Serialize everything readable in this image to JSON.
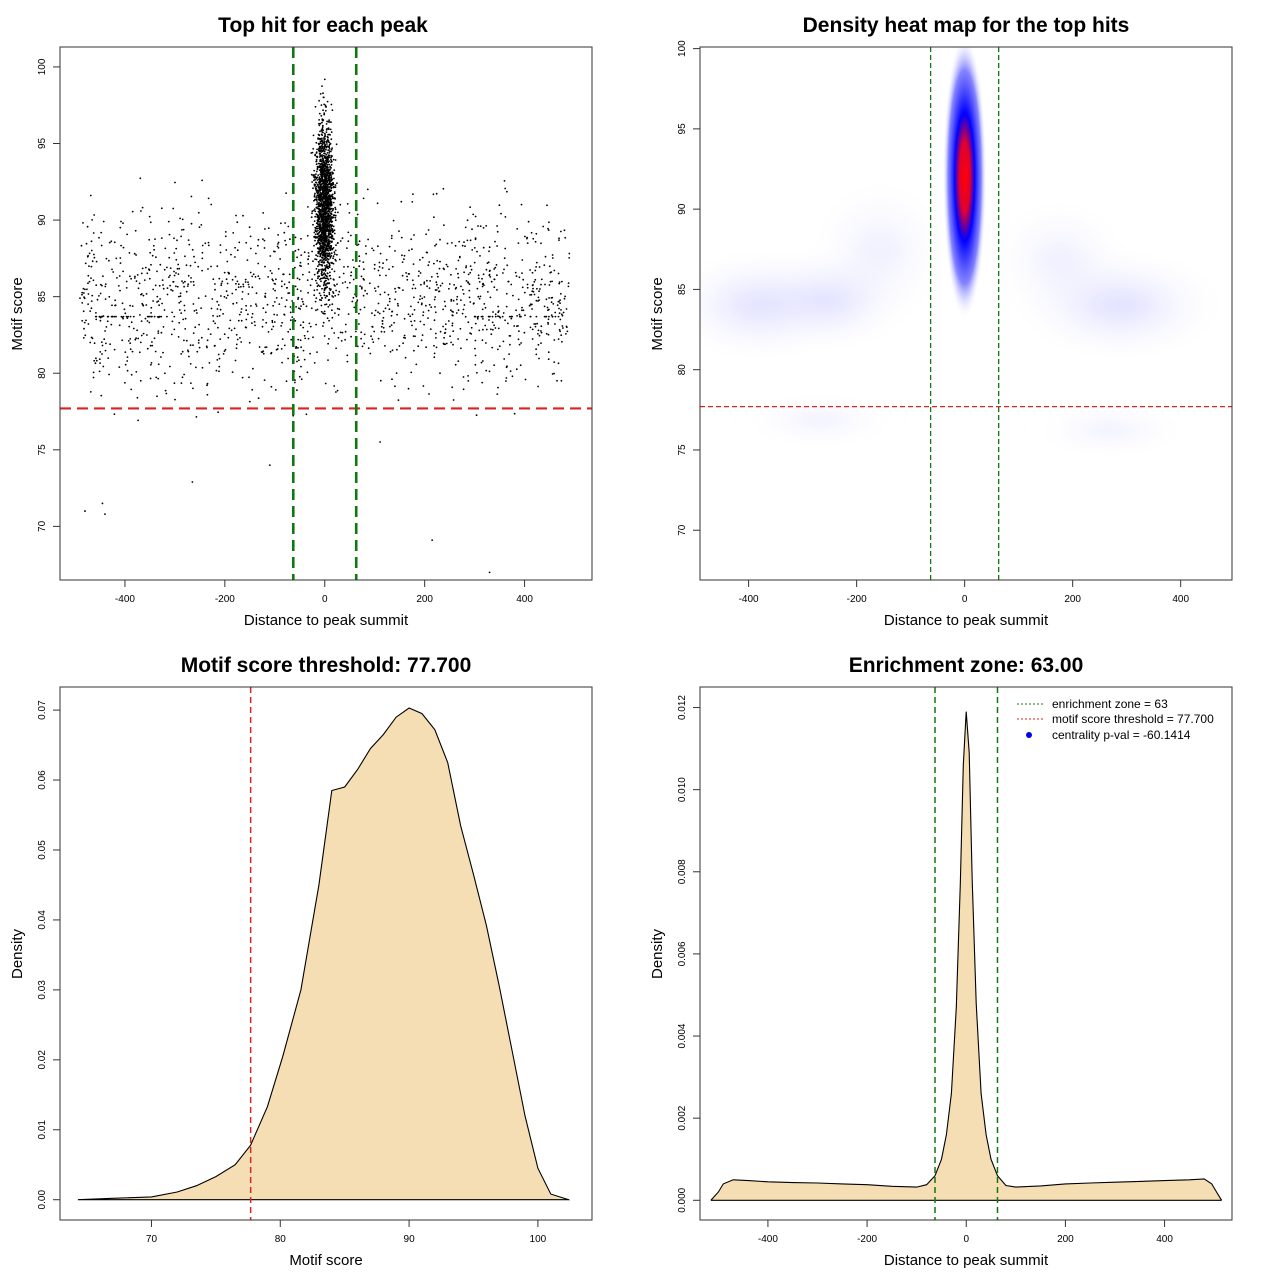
{
  "chart_data": [
    {
      "id": "scatter",
      "type": "scatter",
      "title": "Top hit for each peak",
      "xlabel": "Distance to peak summit",
      "ylabel": "Motif score",
      "xlim": [
        -530,
        535
      ],
      "ylim": [
        66.5,
        101.3
      ],
      "x_ticks": [
        -400,
        -200,
        0,
        200,
        400
      ],
      "y_ticks": [
        70,
        75,
        80,
        85,
        90,
        95,
        100
      ],
      "point_color": "#000000",
      "threshold_y": 77.7,
      "threshold_color": "#dd2222",
      "zone_x": [
        -63,
        63
      ],
      "zone_color": "#117711",
      "description_points": {
        "central_cluster": {
          "x_center": 0,
          "x_spread": 30,
          "y_range": [
            78,
            100
          ],
          "y_peak": 91
        },
        "background": {
          "x_range": [
            -490,
            490
          ],
          "y_range": [
            70.8,
            98
          ],
          "y_peak": 85
        },
        "outliers": [
          [
            -440,
            70.8
          ],
          [
            -445,
            71.5
          ],
          [
            -480,
            71.0
          ],
          [
            215,
            69.1
          ],
          [
            330,
            67.0
          ],
          [
            -265,
            72.9
          ],
          [
            -110,
            74.0
          ]
        ]
      }
    },
    {
      "id": "heatmap",
      "type": "heatmap",
      "title": "Density heat map for the top hits",
      "xlabel": "Distance to peak summit",
      "ylabel": "Motif score",
      "xlim": [
        -490,
        495
      ],
      "ylim": [
        66.9,
        100.1
      ],
      "x_ticks": [
        -400,
        -200,
        0,
        200,
        400
      ],
      "y_ticks": [
        70,
        75,
        80,
        85,
        90,
        95,
        100
      ],
      "density_peak": {
        "x": 0,
        "y": 92
      },
      "color_scale": [
        "#ffffff",
        "#0000ff",
        "#ff0000"
      ],
      "threshold_y": 77.7,
      "threshold_color": "#dd2222",
      "zone_x": [
        -63,
        63
      ],
      "zone_color": "#117711"
    },
    {
      "id": "score_density",
      "type": "area",
      "title": "Motif score threshold: 77.700",
      "xlabel": "Motif score",
      "ylabel": "Density",
      "xlim": [
        62.9,
        104.2
      ],
      "ylim": [
        -0.0029,
        0.0733
      ],
      "x_ticks": [
        70,
        80,
        90,
        100
      ],
      "y_ticks": [
        0.0,
        0.01,
        0.02,
        0.03,
        0.04,
        0.05,
        0.06,
        0.07
      ],
      "y_tick_labels": [
        "0.00",
        "0.01",
        "0.02",
        "0.03",
        "0.04",
        "0.05",
        "0.06",
        "0.07"
      ],
      "fill_color": "#f5deb3",
      "x": [
        64.3,
        67,
        70,
        72,
        73.5,
        75,
        76.5,
        77.7,
        79,
        80.2,
        81.6,
        83,
        84,
        85,
        86,
        87,
        88,
        89,
        90,
        91,
        92,
        93,
        94,
        95,
        96,
        97,
        98,
        99,
        100,
        101,
        102.4
      ],
      "y": [
        0.0,
        0.0002,
        0.0004,
        0.0011,
        0.002,
        0.0033,
        0.005,
        0.0078,
        0.0133,
        0.0205,
        0.03,
        0.045,
        0.0585,
        0.059,
        0.0615,
        0.0645,
        0.0665,
        0.069,
        0.0703,
        0.0695,
        0.0672,
        0.0625,
        0.0535,
        0.0465,
        0.0392,
        0.0305,
        0.0213,
        0.012,
        0.0045,
        0.0008,
        0.0
      ],
      "threshold_x": 77.7,
      "threshold_color": "#dd2222"
    },
    {
      "id": "distance_density",
      "type": "area",
      "title": "Enrichment zone: 63.00",
      "xlabel": "Distance to peak summit",
      "ylabel": "Density",
      "xlim": [
        -537,
        536
      ],
      "ylim": [
        -0.00048,
        0.0125
      ],
      "x_ticks": [
        -400,
        -200,
        0,
        200,
        400
      ],
      "y_ticks": [
        0.0,
        0.002,
        0.004,
        0.006,
        0.008,
        0.01,
        0.012
      ],
      "y_tick_labels": [
        "0.000",
        "0.002",
        "0.004",
        "0.006",
        "0.008",
        "0.010",
        "0.012"
      ],
      "fill_color": "#f5deb3",
      "x": [
        -515,
        -500,
        -490,
        -470,
        -440,
        -400,
        -350,
        -300,
        -250,
        -200,
        -150,
        -100,
        -80,
        -63,
        -50,
        -40,
        -30,
        -20,
        -12,
        -6,
        0,
        6,
        12,
        20,
        30,
        40,
        50,
        63,
        80,
        100,
        150,
        200,
        250,
        300,
        350,
        400,
        450,
        480,
        495,
        505,
        515
      ],
      "y": [
        0.0,
        0.0002,
        0.0004,
        0.0005,
        0.00048,
        0.00045,
        0.00043,
        0.00042,
        0.0004,
        0.00038,
        0.00034,
        0.00032,
        0.00038,
        0.0006,
        0.001,
        0.0016,
        0.0026,
        0.0047,
        0.0077,
        0.0106,
        0.0119,
        0.0109,
        0.0078,
        0.0048,
        0.0026,
        0.0016,
        0.001,
        0.0006,
        0.00036,
        0.00032,
        0.00035,
        0.0004,
        0.00042,
        0.00044,
        0.00046,
        0.00048,
        0.0005,
        0.00052,
        0.0004,
        0.0002,
        0.0
      ],
      "zone_x": [
        -63,
        63
      ],
      "zone_color": "#117711",
      "legend": [
        {
          "label": "enrichment zone = 63",
          "color": "#117711",
          "style": "dotted-line"
        },
        {
          "label": "motif score threshold = 77.700",
          "color": "#dd2222",
          "style": "dotted-line"
        },
        {
          "label": "centrality p-val = -60.1414",
          "color": "#0000ee",
          "style": "point"
        }
      ]
    }
  ]
}
